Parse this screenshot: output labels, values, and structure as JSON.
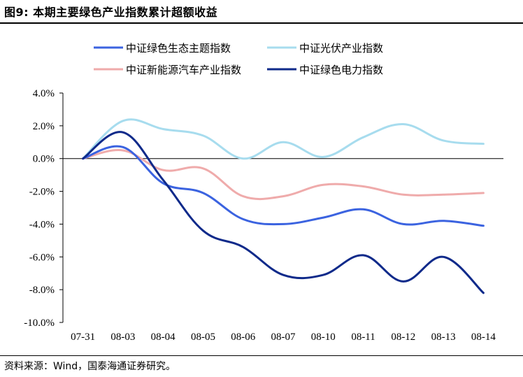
{
  "figure": {
    "title": "图9:  本期主要绿色产业指数累计超额收益",
    "source": "资料来源：Wind，国泰海通证券研究。"
  },
  "chart_data": {
    "type": "line",
    "title": "本期主要绿色产业指数累计超额收益",
    "xlabel": "",
    "ylabel": "",
    "ylim": [
      -10.0,
      4.0
    ],
    "y_unit": "%",
    "y_ticks": [
      4.0,
      2.0,
      0.0,
      -2.0,
      -4.0,
      -6.0,
      -8.0,
      -10.0
    ],
    "y_tick_labels": [
      "4.0%",
      "2.0%",
      "0.0%",
      "-2.0%",
      "-4.0%",
      "-6.0%",
      "-8.0%",
      "-10.0%"
    ],
    "categories": [
      "07-31",
      "08-03",
      "08-04",
      "08-05",
      "08-06",
      "08-07",
      "08-10",
      "08-11",
      "08-12",
      "08-13",
      "08-14"
    ],
    "legend_position": "top",
    "grid": false,
    "series": [
      {
        "name": "中证绿色生态主题指数",
        "color": "#3b63e0",
        "values": [
          0.0,
          0.7,
          -1.5,
          -2.1,
          -3.7,
          -4.0,
          -3.6,
          -3.1,
          -4.0,
          -3.8,
          -4.1
        ]
      },
      {
        "name": "中证光伏产业指数",
        "color": "#a7dcee",
        "values": [
          0.0,
          2.3,
          1.8,
          1.4,
          0.0,
          1.0,
          0.1,
          1.3,
          2.1,
          1.1,
          0.9
        ]
      },
      {
        "name": "中证新能源汽车产业指数",
        "color": "#efabab",
        "values": [
          0.0,
          0.5,
          -0.7,
          -0.6,
          -2.3,
          -2.3,
          -1.6,
          -1.7,
          -2.2,
          -2.2,
          -2.1
        ]
      },
      {
        "name": "中证绿色电力指数",
        "color": "#0f2a8a",
        "values": [
          0.0,
          1.6,
          -1.3,
          -4.4,
          -5.4,
          -7.1,
          -7.1,
          -5.9,
          -7.5,
          -6.0,
          -8.2
        ]
      }
    ]
  }
}
